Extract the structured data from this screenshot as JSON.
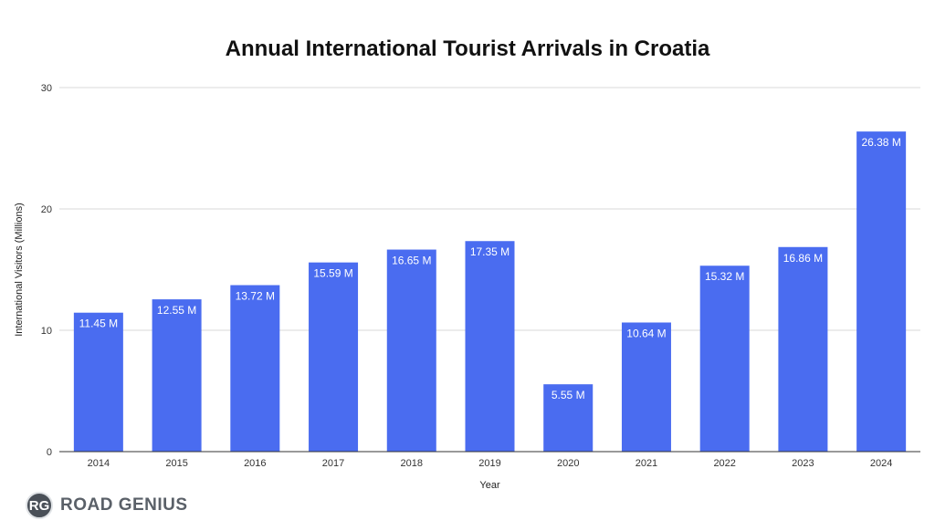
{
  "chart_data": {
    "type": "bar",
    "title": "Annual International Tourist Arrivals in Croatia",
    "xlabel": "Year",
    "ylabel": "International Visitors (Millions)",
    "categories": [
      "2014",
      "2015",
      "2016",
      "2017",
      "2018",
      "2019",
      "2020",
      "2021",
      "2022",
      "2023",
      "2024"
    ],
    "values": [
      11.45,
      12.55,
      13.72,
      15.59,
      16.65,
      17.35,
      5.55,
      10.64,
      15.32,
      16.86,
      26.38
    ],
    "data_labels": [
      "11.45 M",
      "12.55 M",
      "13.72 M",
      "15.59 M",
      "16.65 M",
      "17.35 M",
      "5.55 M",
      "10.64 M",
      "15.32 M",
      "16.86 M",
      "26.38 M"
    ],
    "ylim": [
      0,
      30
    ],
    "yticks": [
      0,
      10,
      20,
      30
    ],
    "grid": true,
    "bar_color": "#4a6cf0",
    "legend": "none"
  },
  "brand": {
    "badge": "RG",
    "name": "ROAD GENIUS"
  }
}
